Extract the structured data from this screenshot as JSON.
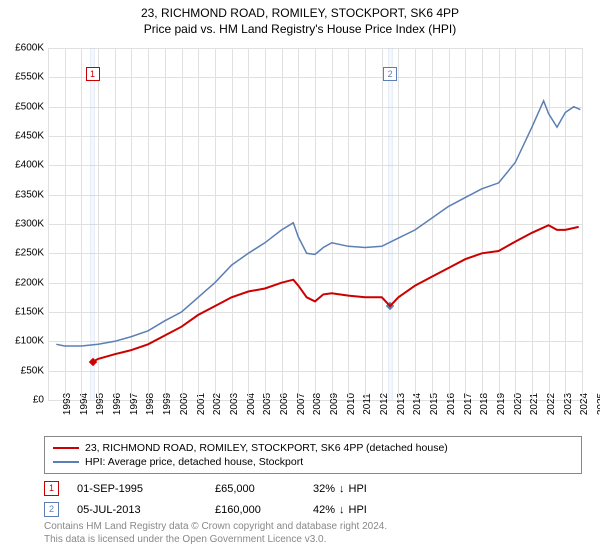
{
  "title": "23, RICHMOND ROAD, ROMILEY, STOCKPORT, SK6 4PP",
  "subtitle": "Price paid vs. HM Land Registry's House Price Index (HPI)",
  "chart": {
    "type": "line",
    "ylim": [
      0,
      600000
    ],
    "ytick_step": 50000,
    "ylabels": [
      "£0",
      "£50K",
      "£100K",
      "£150K",
      "£200K",
      "£250K",
      "£300K",
      "£350K",
      "£400K",
      "£450K",
      "£500K",
      "£550K",
      "£600K"
    ],
    "xlim": [
      1993,
      2025
    ],
    "xtick_step": 1,
    "xlabels": [
      "1993",
      "1994",
      "1995",
      "1996",
      "1997",
      "1998",
      "1999",
      "2000",
      "2001",
      "2002",
      "2003",
      "2004",
      "2005",
      "2006",
      "2007",
      "2008",
      "2009",
      "2010",
      "2011",
      "2012",
      "2013",
      "2014",
      "2015",
      "2016",
      "2017",
      "2018",
      "2019",
      "2020",
      "2021",
      "2022",
      "2023",
      "2024",
      "2025"
    ],
    "background_color": "#ffffff",
    "grid_color": "#e0e0e0",
    "series": [
      {
        "name": "price_paid",
        "label": "23, RICHMOND ROAD, ROMILEY, STOCKPORT, SK6 4PP (detached house)",
        "color": "#cc0000",
        "width": 2,
        "points": [
          [
            1995.67,
            65000
          ],
          [
            1996,
            70000
          ],
          [
            1997,
            78000
          ],
          [
            1998,
            85000
          ],
          [
            1999,
            95000
          ],
          [
            2000,
            110000
          ],
          [
            2001,
            125000
          ],
          [
            2002,
            145000
          ],
          [
            2003,
            160000
          ],
          [
            2004,
            175000
          ],
          [
            2005,
            185000
          ],
          [
            2006,
            190000
          ],
          [
            2007,
            200000
          ],
          [
            2007.7,
            205000
          ],
          [
            2008,
            195000
          ],
          [
            2008.5,
            175000
          ],
          [
            2009,
            168000
          ],
          [
            2009.5,
            180000
          ],
          [
            2010,
            182000
          ],
          [
            2011,
            178000
          ],
          [
            2012,
            175000
          ],
          [
            2013,
            175000
          ],
          [
            2013.5,
            160000
          ],
          [
            2014,
            175000
          ],
          [
            2015,
            195000
          ],
          [
            2016,
            210000
          ],
          [
            2017,
            225000
          ],
          [
            2018,
            240000
          ],
          [
            2019,
            250000
          ],
          [
            2020,
            254000
          ],
          [
            2021,
            270000
          ],
          [
            2022,
            285000
          ],
          [
            2023,
            298000
          ],
          [
            2023.5,
            290000
          ],
          [
            2024,
            290000
          ],
          [
            2024.8,
            295000
          ]
        ]
      },
      {
        "name": "hpi",
        "label": "HPI: Average price, detached house, Stockport",
        "color": "#5b7fb5",
        "width": 1.5,
        "points": [
          [
            1993.5,
            95000
          ],
          [
            1994,
            92000
          ],
          [
            1995,
            92000
          ],
          [
            1996,
            95000
          ],
          [
            1997,
            100000
          ],
          [
            1998,
            108000
          ],
          [
            1999,
            118000
          ],
          [
            2000,
            135000
          ],
          [
            2001,
            150000
          ],
          [
            2002,
            175000
          ],
          [
            2003,
            200000
          ],
          [
            2004,
            230000
          ],
          [
            2005,
            250000
          ],
          [
            2006,
            268000
          ],
          [
            2007,
            290000
          ],
          [
            2007.7,
            302000
          ],
          [
            2008,
            278000
          ],
          [
            2008.5,
            250000
          ],
          [
            2009,
            248000
          ],
          [
            2009.5,
            260000
          ],
          [
            2010,
            268000
          ],
          [
            2011,
            262000
          ],
          [
            2012,
            260000
          ],
          [
            2013,
            262000
          ],
          [
            2014,
            276000
          ],
          [
            2015,
            290000
          ],
          [
            2016,
            310000
          ],
          [
            2017,
            330000
          ],
          [
            2018,
            345000
          ],
          [
            2019,
            360000
          ],
          [
            2020,
            370000
          ],
          [
            2021,
            405000
          ],
          [
            2022,
            465000
          ],
          [
            2022.7,
            510000
          ],
          [
            2023,
            488000
          ],
          [
            2023.5,
            465000
          ],
          [
            2024,
            490000
          ],
          [
            2024.5,
            500000
          ],
          [
            2024.9,
            495000
          ]
        ]
      }
    ],
    "sale_markers": [
      {
        "n": "1",
        "year": 1995.67,
        "value": 65000,
        "color": "#cc0000",
        "marker_top_y": 568000
      },
      {
        "n": "2",
        "year": 2013.5,
        "value": 160000,
        "color": "#5b7fb5",
        "marker_top_y": 568000
      }
    ]
  },
  "legend": [
    {
      "color": "#cc0000",
      "label": "23, RICHMOND ROAD, ROMILEY, STOCKPORT, SK6 4PP (detached house)"
    },
    {
      "color": "#5b7fb5",
      "label": "HPI: Average price, detached house, Stockport"
    }
  ],
  "sales": [
    {
      "n": "1",
      "color": "#cc0000",
      "date": "01-SEP-1995",
      "price": "£65,000",
      "pct": "32%",
      "arrow": "↓",
      "suffix": "HPI"
    },
    {
      "n": "2",
      "color": "#5b7fb5",
      "date": "05-JUL-2013",
      "price": "£160,000",
      "pct": "42%",
      "arrow": "↓",
      "suffix": "HPI"
    }
  ],
  "copyright1": "Contains HM Land Registry data © Crown copyright and database right 2024.",
  "copyright2": "This data is licensed under the Open Government Licence v3.0."
}
